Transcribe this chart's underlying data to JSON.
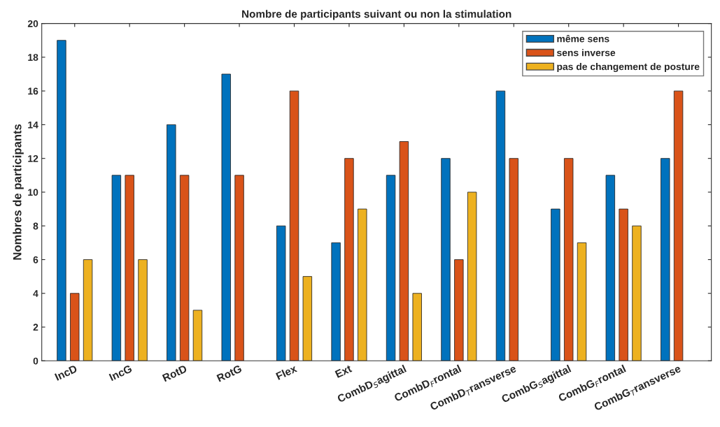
{
  "chart_data": {
    "type": "bar",
    "title": "Nombre de participants suivant ou non la stimulation",
    "ylabel": "Nombres de participants",
    "categories": [
      "IncD",
      "IncG",
      "RotD",
      "RotG",
      "Flex",
      "Ext",
      "CombD$_{S}$agittal",
      "CombD$_{F}$rontal",
      "CombD$_{T}$ransverse",
      "CombG$_{S}$agittal",
      "CombG$_{F}$rontal",
      "CombG$_{T}$ransverse"
    ],
    "series": [
      {
        "name": "même sens",
        "color": "#0072bd",
        "values": [
          19,
          11,
          14,
          17,
          8,
          7,
          11,
          12,
          16,
          9,
          11,
          12
        ]
      },
      {
        "name": "sens inverse",
        "color": "#d95319",
        "values": [
          4,
          11,
          11,
          11,
          16,
          12,
          13,
          6,
          12,
          12,
          9,
          16
        ]
      },
      {
        "name": "pas de changement de posture",
        "color": "#edb120",
        "values": [
          6,
          6,
          3,
          null,
          5,
          9,
          4,
          10,
          null,
          7,
          8,
          null
        ]
      }
    ],
    "ylim": [
      0,
      20
    ],
    "yticks": [
      0,
      2,
      4,
      6,
      8,
      10,
      12,
      14,
      16,
      18,
      20
    ],
    "grid": false,
    "legend": "top right"
  }
}
